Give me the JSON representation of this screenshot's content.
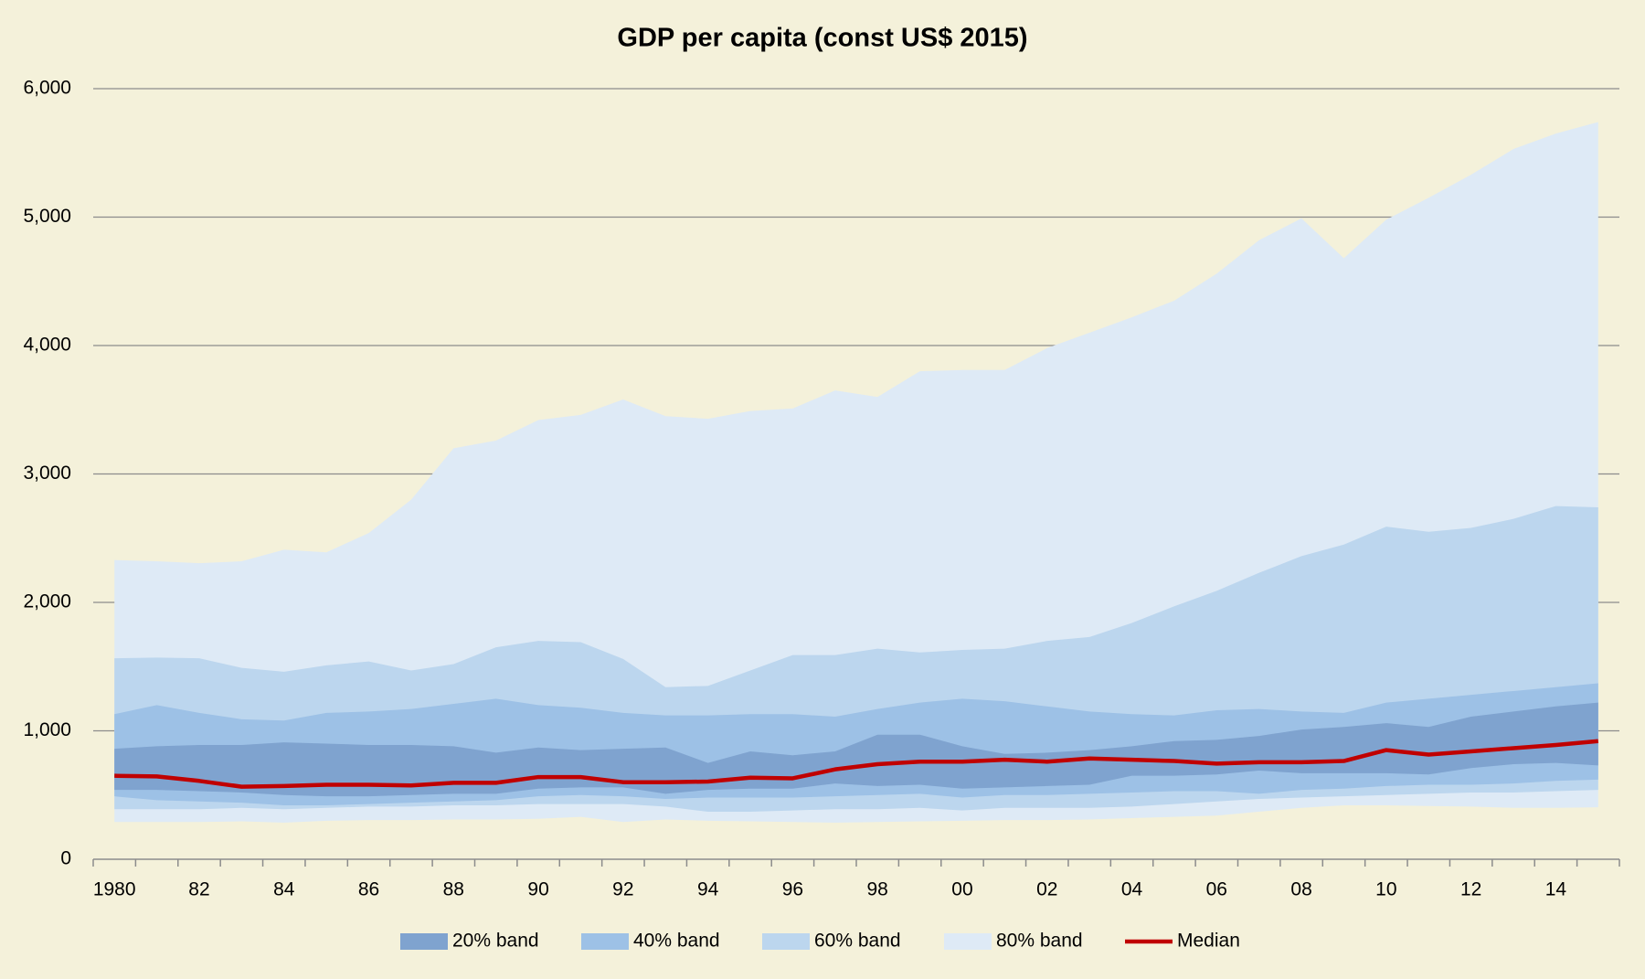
{
  "chart_data": {
    "type": "fan",
    "title": "GDP per capita (const US$ 2015)",
    "categories": [
      "1980",
      null,
      "82",
      null,
      "84",
      null,
      "86",
      null,
      "88",
      null,
      "90",
      null,
      "92",
      null,
      "94",
      null,
      "96",
      null,
      "98",
      null,
      "00",
      null,
      "02",
      null,
      "04",
      null,
      "06",
      null,
      "08",
      null,
      "10",
      null,
      "12",
      null,
      "14",
      null
    ],
    "series": [
      {
        "name": "20% band",
        "color": "#7fa3cf",
        "lower": [
          540,
          540,
          530,
          520,
          500,
          490,
          490,
          500,
          510,
          510,
          550,
          560,
          560,
          510,
          540,
          550,
          550,
          590,
          570,
          580,
          550,
          560,
          570,
          580,
          650,
          650,
          660,
          690,
          670,
          670,
          670,
          660,
          710,
          740,
          750,
          730
        ],
        "upper": [
          860,
          880,
          890,
          890,
          910,
          900,
          890,
          890,
          880,
          830,
          870,
          850,
          860,
          870,
          750,
          840,
          810,
          840,
          970,
          970,
          880,
          820,
          830,
          850,
          880,
          920,
          930,
          960,
          1010,
          1030,
          1060,
          1030,
          1110,
          1150,
          1190,
          1220
        ]
      },
      {
        "name": "40% band",
        "color": "#9dc1e6",
        "lower": [
          490,
          460,
          450,
          440,
          420,
          420,
          430,
          440,
          450,
          460,
          490,
          500,
          490,
          470,
          480,
          480,
          480,
          490,
          500,
          510,
          480,
          500,
          500,
          510,
          520,
          530,
          530,
          510,
          540,
          550,
          570,
          580,
          580,
          590,
          610,
          620
        ],
        "upper": [
          1130,
          1200,
          1140,
          1090,
          1080,
          1140,
          1150,
          1170,
          1210,
          1250,
          1200,
          1180,
          1140,
          1120,
          1120,
          1130,
          1130,
          1110,
          1170,
          1220,
          1250,
          1230,
          1190,
          1150,
          1130,
          1120,
          1160,
          1170,
          1150,
          1140,
          1220,
          1250,
          1280,
          1310,
          1340,
          1370
        ]
      },
      {
        "name": "60% band",
        "color": "#bcd6ee",
        "lower": [
          390,
          390,
          390,
          400,
          390,
          400,
          410,
          410,
          420,
          420,
          430,
          430,
          430,
          410,
          370,
          370,
          380,
          390,
          390,
          400,
          380,
          400,
          400,
          400,
          410,
          430,
          450,
          470,
          480,
          490,
          500,
          510,
          520,
          520,
          530,
          540
        ],
        "upper": [
          1565,
          1570,
          1565,
          1490,
          1460,
          1510,
          1540,
          1470,
          1520,
          1650,
          1700,
          1690,
          1560,
          1340,
          1350,
          1470,
          1590,
          1590,
          1640,
          1610,
          1630,
          1640,
          1700,
          1730,
          1840,
          1970,
          2090,
          2230,
          2360,
          2450,
          2590,
          2550,
          2580,
          2650,
          2750,
          2740
        ]
      },
      {
        "name": "80% band",
        "color": "#deeaf6",
        "lower": [
          290,
          290,
          290,
          295,
          285,
          300,
          305,
          305,
          310,
          310,
          315,
          330,
          290,
          310,
          300,
          295,
          290,
          285,
          290,
          295,
          300,
          305,
          305,
          310,
          320,
          330,
          340,
          370,
          400,
          420,
          420,
          415,
          410,
          400,
          400,
          405
        ],
        "upper": [
          2330,
          2320,
          2305,
          2320,
          2410,
          2390,
          2540,
          2800,
          3200,
          3260,
          3420,
          3460,
          3580,
          3450,
          3430,
          3490,
          3510,
          3650,
          3600,
          3800,
          3810,
          3810,
          3980,
          4100,
          4220,
          4350,
          4560,
          4820,
          4990,
          4680,
          4980,
          5150,
          5330,
          5530,
          5650,
          5740
        ]
      },
      {
        "name": "Median",
        "color": "#c00000",
        "values": [
          650,
          645,
          610,
          565,
          570,
          580,
          580,
          575,
          595,
          595,
          640,
          640,
          600,
          600,
          605,
          635,
          630,
          700,
          740,
          760,
          760,
          775,
          760,
          785,
          775,
          765,
          745,
          755,
          755,
          765,
          850,
          815,
          840,
          865,
          890,
          920
        ]
      }
    ],
    "ylim": [
      0,
      6000
    ],
    "yticks": [
      0,
      {
        "value": 1000,
        "label": "1,000"
      },
      {
        "value": 2000,
        "label": "2,000"
      },
      {
        "value": 3000,
        "label": "3,000"
      },
      {
        "value": 4000,
        "label": "4,000"
      },
      {
        "value": 5000,
        "label": "5,000"
      },
      {
        "value": 6000,
        "label": "6,000"
      }
    ],
    "grid": true
  }
}
